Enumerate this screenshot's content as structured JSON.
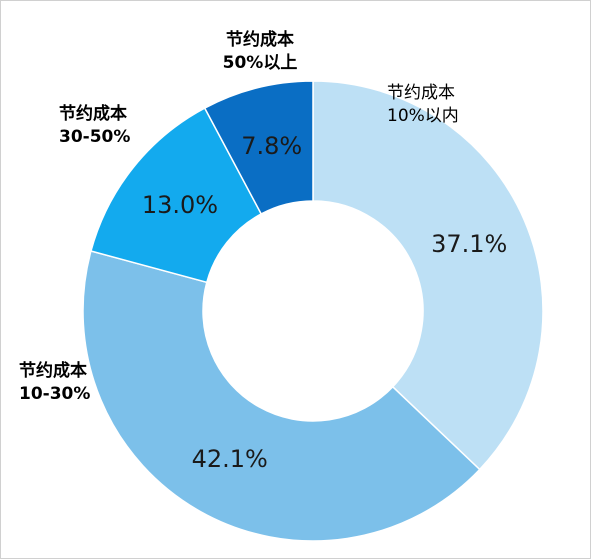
{
  "chart_data": {
    "type": "pie",
    "title": "",
    "categories": [
      "节约成本\n10%以内",
      "节约成本\n10-30%",
      "节约成本\n30-50%",
      "节约成本\n50%以上"
    ],
    "series": [
      {
        "values": [
          37.1,
          42.1,
          13.0,
          7.8
        ]
      }
    ],
    "slices": [
      {
        "label_line1": "节约成本",
        "label_line2": "10%以内",
        "value": 37.1,
        "value_label": "37.1%",
        "color": "#bde0f5"
      },
      {
        "label_line1": "节约成本",
        "label_line2": "10-30%",
        "value": 42.1,
        "value_label": "42.1%",
        "color": "#7cc0ea"
      },
      {
        "label_line1": "节约成本",
        "label_line2": "30-50%",
        "value": 13.0,
        "value_label": "13.0%",
        "color": "#13aaee"
      },
      {
        "label_line1": "节约成本",
        "label_line2": "50%以上",
        "value": 7.8,
        "value_label": "7.8%",
        "color": "#0a6ec4"
      }
    ],
    "donut": true,
    "legend": "none"
  }
}
